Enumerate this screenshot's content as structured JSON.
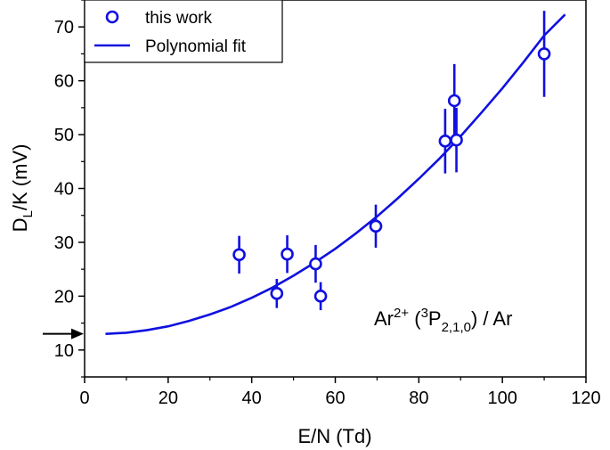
{
  "chart_data": {
    "type": "scatter",
    "xlabel": "E/N (Td)",
    "ylabel_main": "D",
    "ylabel_sub": "L",
    "ylabel_rest": "/K (mV)",
    "xlim": [
      0,
      120
    ],
    "ylim": [
      5,
      75
    ],
    "x_ticks": [
      0,
      20,
      40,
      60,
      80,
      100,
      120
    ],
    "y_ticks": [
      10,
      20,
      30,
      40,
      50,
      60,
      70
    ],
    "x_tick_labels": [
      "0",
      "20",
      "40",
      "60",
      "80",
      "100",
      "120"
    ],
    "y_tick_labels": [
      "10",
      "20",
      "30",
      "40",
      "50",
      "60",
      "70"
    ],
    "grid": false,
    "legend_placement": "top-left",
    "color": "#1010e0",
    "series": [
      {
        "name": "this work",
        "kind": "points-with-error-bars",
        "points": [
          {
            "x": 37.0,
            "y": 27.7,
            "yerr": 3.5
          },
          {
            "x": 46.0,
            "y": 20.5,
            "yerr": 2.7
          },
          {
            "x": 48.5,
            "y": 27.8,
            "yerr": 3.5
          },
          {
            "x": 55.3,
            "y": 26.0,
            "yerr": 3.5
          },
          {
            "x": 56.5,
            "y": 20.0,
            "yerr": 2.6
          },
          {
            "x": 69.7,
            "y": 33.0,
            "yerr": 4.0
          },
          {
            "x": 86.3,
            "y": 48.8,
            "yerr": 6.0
          },
          {
            "x": 88.5,
            "y": 56.3,
            "yerr": 6.8
          },
          {
            "x": 89.0,
            "y": 49.0,
            "yerr": 6.0
          },
          {
            "x": 110.0,
            "y": 65.0,
            "yerr": 8.0
          }
        ]
      },
      {
        "name": "Polynomial fit",
        "kind": "curve",
        "x": [
          5,
          10,
          15,
          20,
          25,
          30,
          35,
          40,
          45,
          50,
          55,
          60,
          65,
          70,
          75,
          80,
          85,
          90,
          95,
          100,
          105,
          110,
          115
        ],
        "y": [
          13.0,
          13.2,
          13.7,
          14.4,
          15.4,
          16.6,
          18.0,
          19.7,
          21.6,
          23.8,
          26.2,
          28.8,
          31.7,
          34.8,
          38.2,
          41.8,
          45.6,
          49.7,
          54.1,
          58.6,
          63.4,
          68.4,
          72.3
        ]
      }
    ],
    "annotation": {
      "base": "Ar",
      "charge": "2+",
      "open": " (",
      "mult": "3",
      "term": "P",
      "levels": "2,1,0",
      "rest": ") / Ar"
    },
    "arrow_marker_y": 13.0
  }
}
